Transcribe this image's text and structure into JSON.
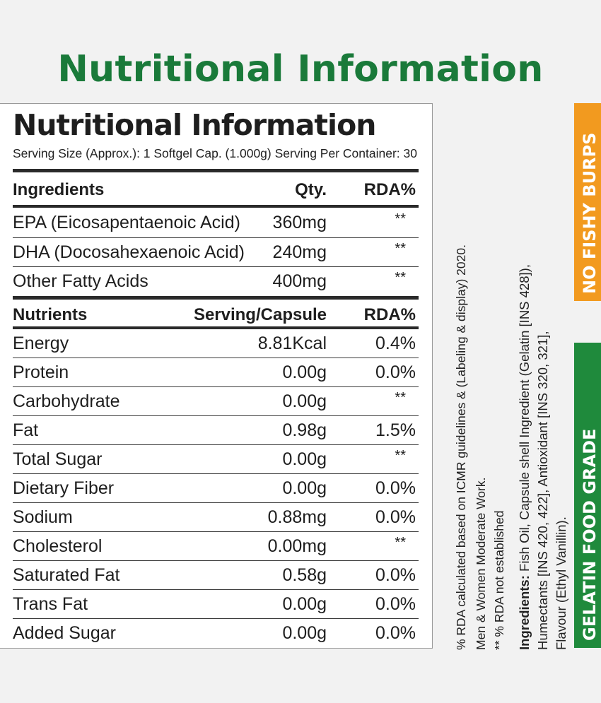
{
  "page_title": "Nutritional Information",
  "panel": {
    "title": "Nutritional Information",
    "serving_line": "Serving Size (Approx.): 1 Softgel Cap. (1.000g)  Serving Per Container: 30"
  },
  "ingredients_table": {
    "headers": [
      "Ingredients",
      "Qty.",
      "RDA%"
    ],
    "rows": [
      [
        "EPA (Eicosapentaenoic Acid)",
        "360mg",
        "**"
      ],
      [
        "DHA (Docosahexaenoic Acid)",
        "240mg",
        "**"
      ],
      [
        "Other Fatty Acids",
        "400mg",
        "**"
      ]
    ]
  },
  "nutrients_table": {
    "headers": [
      "Nutrients",
      "Serving/Capsule",
      "RDA%"
    ],
    "rows": [
      [
        "Energy",
        "8.81Kcal",
        "0.4%"
      ],
      [
        "Protein",
        "0.00g",
        "0.0%"
      ],
      [
        "Carbohydrate",
        "0.00g",
        "**"
      ],
      [
        "Fat",
        "0.98g",
        "1.5%"
      ],
      [
        "Total Sugar",
        "0.00g",
        "**"
      ],
      [
        "Dietary Fiber",
        "0.00g",
        "0.0%"
      ],
      [
        "Sodium",
        "0.88mg",
        "0.0%"
      ],
      [
        "Cholesterol",
        "0.00mg",
        "**"
      ],
      [
        "Saturated Fat",
        "0.58g",
        "0.0%"
      ],
      [
        "Trans Fat",
        "0.00g",
        "0.0%"
      ],
      [
        "Added Sugar",
        "0.00g",
        "0.0%"
      ]
    ]
  },
  "notes": {
    "rda_line1": "% RDA calculated based on ICMR guidelines & (Labeling & display) 2020.",
    "rda_line2": "Men & Women Moderate Work.",
    "rda_line3": "** % RDA not established",
    "ingredients_label": "Ingredients:",
    "ingredients_line1": " Fish Oil, Capsule shell Ingredient (Gelatin [INS 428]),",
    "ingredients_line2": "Humectants  [INS  420,  422],  Antioxidant  [INS  320,  321],",
    "ingredients_line3": "Flavour (Ethyl Vanillin)."
  },
  "badges": {
    "no_fishy_burps": "NO FISHY BURPS",
    "no_fishy_burps_color": "#f29a1f",
    "gelatin_food_grade": "GELATIN FOOD GRADE",
    "gelatin_food_grade_color": "#1f8a3c"
  },
  "colors": {
    "title_green": "#1a7a3a",
    "background": "#f2f2f2"
  }
}
